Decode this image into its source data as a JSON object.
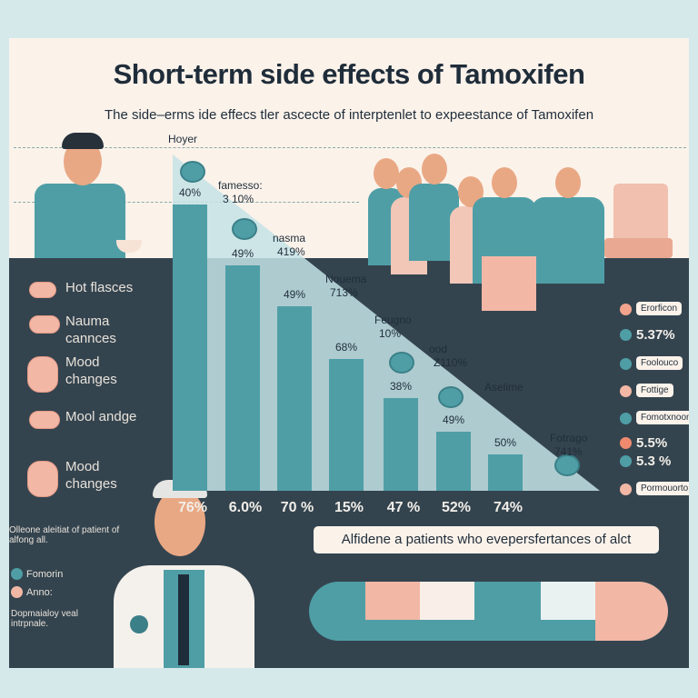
{
  "title": "Short-term side effects of Tamoxifen",
  "subtitle": "The side–erms ide effecs tler ascecte of interptenlet to expeestance of Tamoxifen",
  "chart_label": "Hoyer",
  "chart_data": {
    "type": "bar",
    "title": "Short-term side effects of Tamoxifen",
    "bar_labels": [
      "40%",
      "49%",
      "49%",
      "68%",
      "38%",
      "49%",
      "50%"
    ],
    "values": [
      40,
      49,
      49,
      68,
      38,
      49,
      50
    ],
    "bottom_labels": [
      "76%",
      "6.0%",
      "70 %",
      "15%",
      "47 %",
      "52%",
      "74%"
    ],
    "annotations": [
      {
        "name": "famesso:",
        "value": "3 10%"
      },
      {
        "name": "nasma",
        "value": "419%"
      },
      {
        "name": "Nouema",
        "value": "713%"
      },
      {
        "name": "Feugno",
        "value": "10%"
      },
      {
        "name": "ood",
        "value": "Z110%"
      },
      {
        "name": "Aselime",
        "value": ""
      },
      {
        "name": "Fotrago",
        "value": "741%"
      }
    ],
    "bar_color": "#4f9ea6",
    "grid": false
  },
  "left_legend": [
    {
      "label": "Hot flasces"
    },
    {
      "label": "Nauma cannces"
    },
    {
      "label": "Mood changes"
    },
    {
      "label": "Mool andge"
    },
    {
      "label": "Mood changes"
    }
  ],
  "right_legend": [
    {
      "type": "box",
      "text": "Erorficon",
      "color": "#f2a48c"
    },
    {
      "type": "text",
      "text": "5.37%",
      "color": "#4f9ea6"
    },
    {
      "type": "box",
      "text": "Foolouco",
      "color": "#4f9ea6"
    },
    {
      "type": "box",
      "text": "Fottige",
      "color": "#f2b7a5"
    },
    {
      "type": "box",
      "text": "Fomotxnoon",
      "color": "#4f9ea6"
    },
    {
      "type": "text",
      "text": "5.5%",
      "color": "#ef8a6e"
    },
    {
      "type": "text",
      "text": "5.3 %",
      "color": "#4f9ea6"
    },
    {
      "type": "box",
      "text": "Pormouorto",
      "color": "#f2b7a5"
    }
  ],
  "bottom_left": {
    "note": "Olleone aleitiat of patient of alfong all.",
    "items": [
      {
        "label": "Fomorin",
        "color": "#4f9ea6"
      },
      {
        "label": "Anno:",
        "color": "#f2b7a5"
      }
    ],
    "footnote": "Dopmaialoy veal intrpnale."
  },
  "banner": "Alfidene a patients who evepersfertances of alct",
  "colors": {
    "teal": "#4f9ea6",
    "peach": "#f2b7a5",
    "dark": "#34444f",
    "cream": "#fbf2ea"
  }
}
